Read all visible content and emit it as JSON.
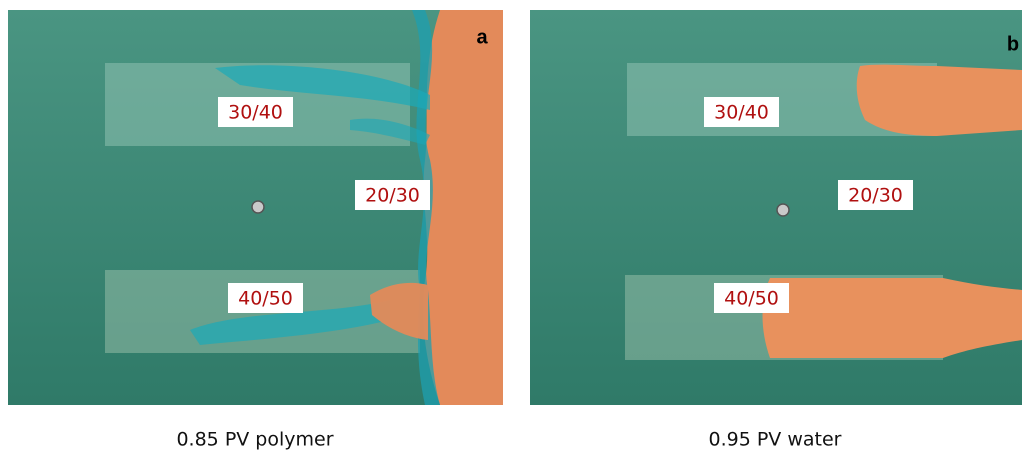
{
  "panels": [
    {
      "letter": "a",
      "labels": [
        "30/40",
        "20/30",
        "40/50"
      ],
      "caption": "0.85 PV polymer"
    },
    {
      "letter": "b",
      "labels": [
        "30/40",
        "20/30",
        "40/50"
      ],
      "caption": "0.95 PV water"
    }
  ]
}
